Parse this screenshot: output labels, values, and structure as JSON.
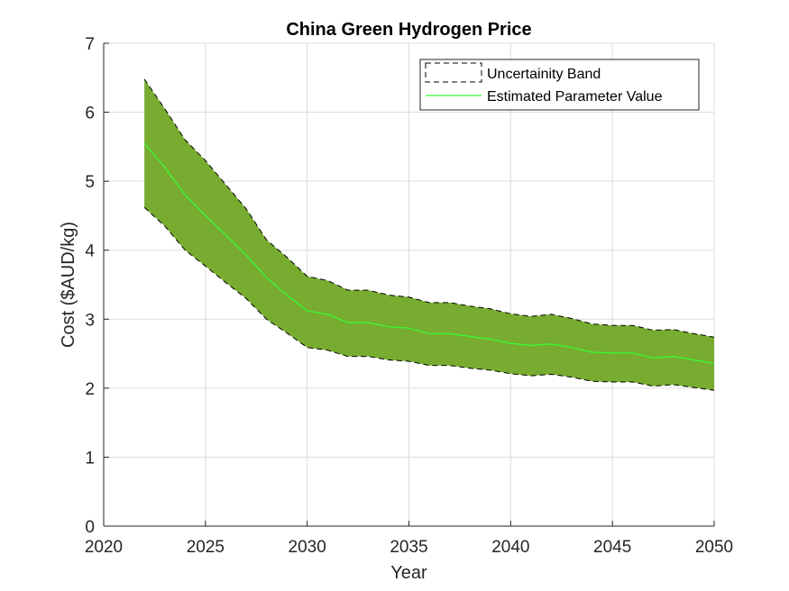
{
  "chart_data": {
    "type": "area",
    "title": "China Green Hydrogen Price",
    "xlabel": "Year",
    "ylabel": "Cost ($AUD/kg)",
    "xlim": [
      2020,
      2050
    ],
    "ylim": [
      0,
      7
    ],
    "xticks": [
      2020,
      2025,
      2030,
      2035,
      2040,
      2045,
      2050
    ],
    "yticks": [
      0,
      1,
      2,
      3,
      4,
      5,
      6,
      7
    ],
    "grid": true,
    "legend_position": "top-right",
    "x": [
      2022,
      2023,
      2024,
      2025,
      2026,
      2027,
      2028,
      2029,
      2030,
      2031,
      2032,
      2033,
      2034,
      2035,
      2036,
      2037,
      2038,
      2039,
      2040,
      2041,
      2042,
      2043,
      2044,
      2045,
      2046,
      2047,
      2048,
      2049,
      2050
    ],
    "series": [
      {
        "name": "Uncertainity Band",
        "kind": "band",
        "upper": [
          6.48,
          6.05,
          5.6,
          5.3,
          4.95,
          4.6,
          4.15,
          3.9,
          3.62,
          3.56,
          3.42,
          3.42,
          3.35,
          3.32,
          3.24,
          3.24,
          3.19,
          3.15,
          3.08,
          3.04,
          3.07,
          3.01,
          2.93,
          2.91,
          2.91,
          2.84,
          2.85,
          2.79,
          2.74
        ],
        "lower": [
          4.62,
          4.35,
          4.0,
          3.77,
          3.53,
          3.3,
          3.0,
          2.8,
          2.59,
          2.55,
          2.46,
          2.46,
          2.41,
          2.39,
          2.33,
          2.33,
          2.29,
          2.26,
          2.21,
          2.18,
          2.2,
          2.16,
          2.1,
          2.09,
          2.09,
          2.03,
          2.05,
          2.01,
          1.97
        ],
        "color": "#77AC30",
        "edge_color": "#000000"
      },
      {
        "name": "Estimated Parameter Value",
        "kind": "line",
        "values": [
          5.55,
          5.2,
          4.8,
          4.5,
          4.22,
          3.93,
          3.6,
          3.35,
          3.12,
          3.07,
          2.95,
          2.95,
          2.89,
          2.87,
          2.79,
          2.79,
          2.75,
          2.71,
          2.65,
          2.62,
          2.64,
          2.59,
          2.52,
          2.51,
          2.51,
          2.44,
          2.46,
          2.41,
          2.36
        ],
        "color": "#33FF33"
      }
    ]
  }
}
